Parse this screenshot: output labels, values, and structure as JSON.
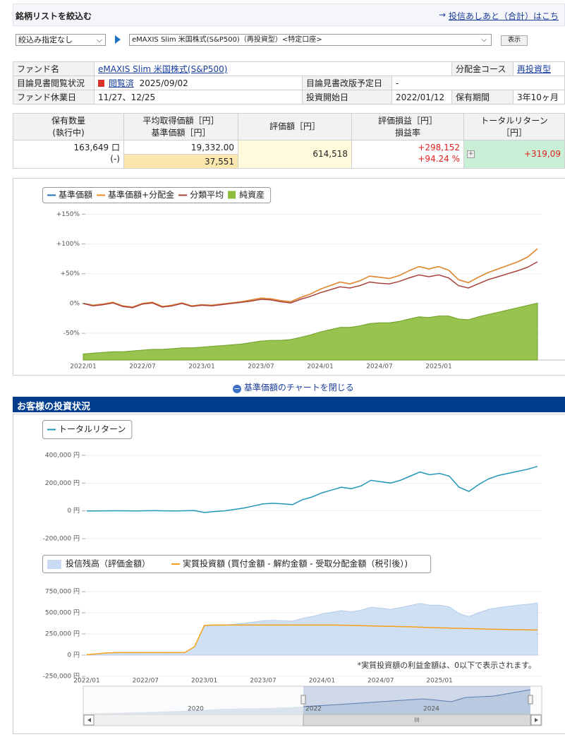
{
  "header": {
    "title": "銘柄リストを絞込む",
    "arrow": "→",
    "link": "投信あしあと（合計）はこち"
  },
  "filter": {
    "select1": "絞込み指定なし",
    "select2": "eMAXIS Slim 米国株式(S&P500)（再投資型）<特定口座>",
    "button": "表示"
  },
  "fund_info": {
    "rows": [
      [
        "ファンド名",
        "eMAXIS Slim 米国株式(S&P500)",
        "分配金コース",
        "再投資型"
      ],
      [
        "目論見書閲覧状況",
        "閲覧済",
        "2025/09/02",
        "目論見書改版予定日",
        "-"
      ],
      [
        "ファンド休業日",
        "11/27、12/25",
        "投資開始日",
        "2022/01/12",
        "保有期間",
        "3年10ヶ月"
      ]
    ]
  },
  "holdings": {
    "headers": [
      [
        "保有数量",
        "(執行中)"
      ],
      [
        "平均取得価額［円］",
        "基準価額［円］"
      ],
      [
        "評価額［円］"
      ],
      [
        "評価損益［円］",
        "損益率"
      ],
      [
        "トータルリターン",
        "［円］"
      ]
    ],
    "row": {
      "quantity": "163,649 口",
      "pending": "(-)",
      "avg_cost": "19,332.00",
      "nav": "37,551",
      "value": "614,518",
      "pl": "+298,152",
      "pl_rate": "+94.24 %",
      "total_return": "+319,09"
    }
  },
  "chart_toggle": "基準価額のチャートを閉じる",
  "section_title": "お客様の投資状況",
  "chart_data": [
    {
      "type": "line",
      "categories": [
        "2022/01",
        null,
        null,
        null,
        null,
        null,
        "2022/07",
        null,
        null,
        null,
        null,
        null,
        "2023/01",
        null,
        null,
        null,
        null,
        null,
        "2023/07",
        null,
        null,
        null,
        null,
        null,
        "2024/01",
        null,
        null,
        null,
        null,
        null,
        "2024/07",
        null,
        null,
        null,
        null,
        null,
        "2025/01",
        null,
        null,
        null,
        null,
        null,
        null,
        null,
        null,
        null,
        null
      ],
      "ylim": [
        -95,
        160
      ],
      "yticks": [
        {
          "value": 150,
          "label": "+150%"
        },
        {
          "value": 100,
          "label": "+100%"
        },
        {
          "value": 50,
          "label": "+50%"
        },
        {
          "value": 0,
          "label": "0%"
        },
        {
          "value": -50,
          "label": "-50%"
        }
      ],
      "y2lim": [
        0,
        20
      ],
      "grid": true,
      "series": [
        {
          "name": "基準価額",
          "color": "#2a6ebb",
          "values": [
            0,
            -3,
            -1,
            2,
            -4,
            -6,
            0,
            2,
            -5,
            -3,
            1,
            -4,
            -2,
            -3,
            -1,
            1,
            3,
            6,
            9,
            8,
            5,
            3,
            10,
            16,
            24,
            30,
            36,
            33,
            38,
            46,
            44,
            42,
            47,
            55,
            62,
            58,
            62,
            56,
            40,
            35,
            44,
            52,
            58,
            64,
            70,
            78,
            92
          ]
        },
        {
          "name": "基準価額+分配金",
          "color": "#f08a24",
          "values": [
            0,
            -3,
            -1,
            2,
            -4,
            -6,
            0,
            2,
            -5,
            -3,
            1,
            -4,
            -2,
            -3,
            -1,
            1,
            3,
            6,
            9,
            8,
            5,
            3,
            10,
            16,
            24,
            30,
            36,
            33,
            38,
            46,
            44,
            42,
            47,
            55,
            62,
            58,
            62,
            56,
            40,
            35,
            44,
            52,
            58,
            64,
            70,
            78,
            92
          ]
        },
        {
          "name": "分類平均",
          "color": "#a8403c",
          "values": [
            0,
            -4,
            -2,
            1,
            -5,
            -7,
            -1,
            1,
            -6,
            -4,
            0,
            -5,
            -3,
            -4,
            -2,
            0,
            2,
            4,
            7,
            6,
            3,
            1,
            7,
            12,
            18,
            23,
            28,
            26,
            30,
            36,
            34,
            33,
            37,
            43,
            48,
            45,
            48,
            43,
            30,
            26,
            33,
            40,
            45,
            50,
            55,
            61,
            70
          ]
        },
        {
          "name": "純資産",
          "color": "#8dbd3c",
          "mark": "area",
          "axis": "y2",
          "values": [
            0.8,
            0.9,
            1.0,
            1.1,
            1.1,
            1.2,
            1.3,
            1.4,
            1.4,
            1.5,
            1.6,
            1.6,
            1.7,
            1.8,
            1.9,
            2.0,
            2.1,
            2.3,
            2.5,
            2.6,
            2.6,
            2.7,
            3.0,
            3.3,
            3.7,
            4.0,
            4.3,
            4.3,
            4.5,
            4.8,
            4.9,
            4.9,
            5.1,
            5.4,
            5.7,
            5.6,
            5.8,
            5.8,
            5.4,
            5.3,
            5.7,
            6.0,
            6.3,
            6.6,
            6.9,
            7.2,
            7.5
          ]
        }
      ]
    },
    {
      "type": "line",
      "categories": [
        "2022/01",
        null,
        null,
        null,
        null,
        null,
        "2022/07",
        null,
        null,
        null,
        null,
        null,
        "2023/01",
        null,
        null,
        null,
        null,
        null,
        "2023/07",
        null,
        null,
        null,
        null,
        null,
        "2024/01",
        null,
        null,
        null,
        null,
        null,
        "2024/07",
        null,
        null,
        null,
        null,
        null,
        "2025/01",
        null,
        null,
        null,
        null,
        null,
        null,
        null,
        null,
        null,
        null
      ],
      "show_categories": false,
      "ylim": [
        -200000,
        400000
      ],
      "yticks": [
        {
          "value": 400000,
          "label": "400,000 円"
        },
        {
          "value": 200000,
          "label": "200,000 円"
        },
        {
          "value": 0,
          "label": "0 円"
        },
        {
          "value": -200000,
          "label": "-200,000 円"
        }
      ],
      "grid": true,
      "series": [
        {
          "name": "トータルリターン",
          "color": "#2396b8",
          "values": [
            0,
            0,
            500,
            1000,
            500,
            -500,
            1000,
            1500,
            500,
            0,
            1000,
            2000,
            -12000,
            -5000,
            0,
            10000,
            20000,
            35000,
            50000,
            55000,
            50000,
            45000,
            80000,
            100000,
            130000,
            150000,
            170000,
            160000,
            180000,
            220000,
            210000,
            200000,
            220000,
            250000,
            280000,
            260000,
            270000,
            250000,
            170000,
            140000,
            190000,
            230000,
            255000,
            270000,
            285000,
            300000,
            320000
          ]
        }
      ]
    },
    {
      "type": "line",
      "categories": [
        "2022/01",
        null,
        null,
        null,
        null,
        null,
        "2022/07",
        null,
        null,
        null,
        null,
        null,
        "2023/01",
        null,
        null,
        null,
        null,
        null,
        "2023/07",
        null,
        null,
        null,
        null,
        null,
        "2024/01",
        null,
        null,
        null,
        null,
        null,
        "2024/07",
        null,
        null,
        null,
        null,
        null,
        "2025/01",
        null,
        null,
        null,
        null,
        null,
        null,
        null,
        null,
        null,
        null
      ],
      "ylim": [
        -250000,
        750000
      ],
      "yticks": [
        {
          "value": 750000,
          "label": "750,000 円"
        },
        {
          "value": 500000,
          "label": "500,000 円"
        },
        {
          "value": 250000,
          "label": "250,000 円"
        },
        {
          "value": 0,
          "label": "0 円"
        },
        {
          "value": -250000,
          "label": "-250,000 円"
        }
      ],
      "grid": true,
      "note": "*実質投資額の利益金額は、0以下で表示されます。",
      "series": [
        {
          "name": "投信残高（評価金額）",
          "color": "#c8dbf2",
          "mark": "area",
          "values": [
            5000,
            14000,
            26000,
            32000,
            29000,
            28000,
            31000,
            32000,
            29000,
            30000,
            31000,
            98000,
            345000,
            350000,
            355000,
            365000,
            375000,
            390000,
            405000,
            410000,
            405000,
            400000,
            435000,
            455000,
            485000,
            505000,
            525000,
            510000,
            530000,
            565000,
            555000,
            540000,
            560000,
            585000,
            610000,
            590000,
            590000,
            570000,
            490000,
            455000,
            500000,
            540000,
            560000,
            575000,
            590000,
            600000,
            615000
          ]
        },
        {
          "name": "実質投資額 (買付金額 - 解約金額 - 受取分配金額（税引後）)",
          "color": "#f5a01a",
          "values": [
            5000,
            15000,
            25000,
            30000,
            30000,
            30000,
            30000,
            30000,
            30000,
            30000,
            30000,
            100000,
            350000,
            355000,
            355000,
            355000,
            355000,
            355000,
            355000,
            355000,
            355000,
            355000,
            355000,
            355000,
            355000,
            355000,
            353000,
            350000,
            348000,
            345000,
            342000,
            340000,
            337000,
            334000,
            330000,
            326000,
            322000,
            319000,
            316000,
            313000,
            310000,
            307000,
            304000,
            302000,
            300000,
            298000,
            296000
          ]
        }
      ]
    }
  ],
  "navigator": {
    "labels": [
      "2020",
      "2022",
      "2024"
    ],
    "grip": "III"
  }
}
